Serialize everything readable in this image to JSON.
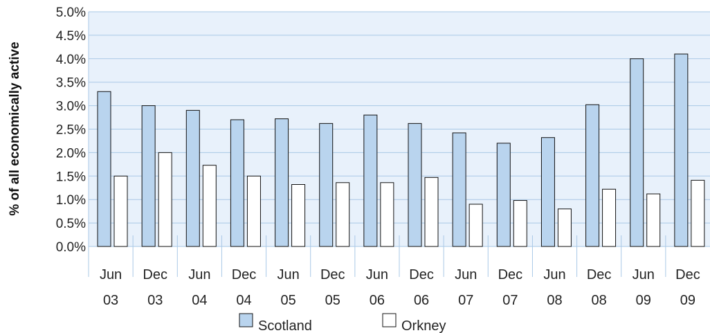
{
  "chart_data": {
    "type": "bar",
    "ylabel": "% of all economically active",
    "xlabel": "",
    "ylim": [
      0,
      5
    ],
    "y_ticks": [
      "0.0%",
      "0.5%",
      "1.0%",
      "1.5%",
      "2.0%",
      "2.5%",
      "3.0%",
      "3.5%",
      "4.0%",
      "4.5%",
      "5.0%"
    ],
    "grid": true,
    "legend_position": "bottom",
    "categories": [
      {
        "month": "Jun",
        "year": "03"
      },
      {
        "month": "Dec",
        "year": "03"
      },
      {
        "month": "Jun",
        "year": "04"
      },
      {
        "month": "Dec",
        "year": "04"
      },
      {
        "month": "Jun",
        "year": "05"
      },
      {
        "month": "Dec",
        "year": "05"
      },
      {
        "month": "Jun",
        "year": "06"
      },
      {
        "month": "Dec",
        "year": "06"
      },
      {
        "month": "Jun",
        "year": "07"
      },
      {
        "month": "Dec",
        "year": "07"
      },
      {
        "month": "Jun",
        "year": "08"
      },
      {
        "month": "Dec",
        "year": "08"
      },
      {
        "month": "Jun",
        "year": "09"
      },
      {
        "month": "Dec",
        "year": "09"
      }
    ],
    "series": [
      {
        "name": "Scotland",
        "color": "#b9d4ee",
        "values": [
          3.3,
          3.0,
          2.9,
          2.7,
          2.72,
          2.62,
          2.8,
          2.62,
          2.42,
          2.2,
          2.32,
          3.02,
          4.0,
          4.1
        ]
      },
      {
        "name": "Orkney",
        "color": "#ffffff",
        "values": [
          1.5,
          2.0,
          1.73,
          1.5,
          1.32,
          1.36,
          1.36,
          1.47,
          0.9,
          0.98,
          0.8,
          1.22,
          1.12,
          1.41
        ]
      }
    ],
    "plot_background": "#e8f1fb",
    "grid_color": "#a9c8e6"
  }
}
